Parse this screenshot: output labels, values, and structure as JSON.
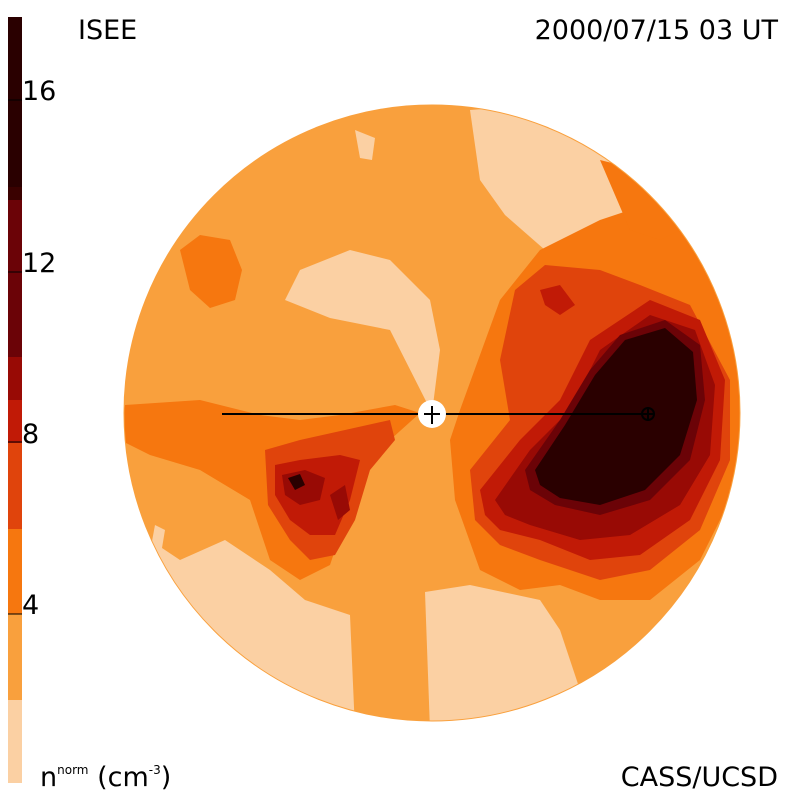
{
  "header": {
    "instrument": "ISEE",
    "timestamp": "2000/07/15 03 UT"
  },
  "footer": {
    "quantity": "n",
    "quantity_superscript": "norm",
    "units_open": " (cm",
    "units_exp": "-3",
    "units_close": ")",
    "credit": "CASS/UCSD"
  },
  "colorbar": {
    "ticks": [
      "16",
      "12",
      "8",
      "4"
    ],
    "levels": [
      "#fbd0a3",
      "#f9a03d",
      "#f6770f",
      "#e0440c",
      "#c11a06",
      "#980a05",
      "#6b0307",
      "#3a0100",
      "#2a0000"
    ],
    "tick_values": [
      16,
      12,
      8,
      4
    ],
    "range": [
      0,
      18
    ]
  },
  "map": {
    "background_color": "#f9a03d",
    "sun_marker": "sun-plus-icon",
    "earth_marker": "earth-crosshair-icon"
  }
}
